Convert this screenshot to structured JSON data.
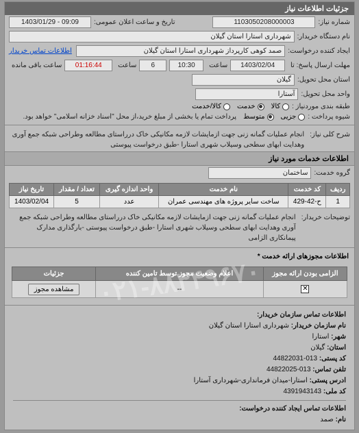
{
  "panel_title": "جزئیات اطلاعات نیاز",
  "labels": {
    "req_no": "شماره نیاز:",
    "announce_dt": "تاریخ و ساعت اعلان عمومی:",
    "buyer_name": "نام دستگاه خریدار:",
    "creator": "ایجاد کننده درخواست:",
    "buyer_contact_link": "اطلاعات تماس خریدار",
    "deadline": "مهلت ارسال پاسخ: تا",
    "time_word": "ساعت",
    "remaining": "ساعت باقی مانده",
    "delivery": "استان محل تحویل:",
    "unit": "واحد محل تحویل:",
    "pkg_supply": "طبقه بندی موردنیاز :",
    "pay_type": "شیوه پرداخت :",
    "pay_note": "پرداخت تمام یا بخشی از مبلغ خرید،از محل \"اسناد خزانه اسلامی\" خواهد بود.",
    "short_desc": "شرح کلی نیاز:",
    "extra_desc": "توضیحات خریدار:",
    "svc_section": "اطلاعات خدمات مورد نیاز",
    "svc_group": "گروه خدمت:",
    "permit_section": "اطلاعات مجوزهای ارائه خدمت *",
    "contact_section": "اطلاعات تماس سازمان خریدار:",
    "org_name_lbl": "نام سازمان خریدار:",
    "city_lbl": "شهر:",
    "province_lbl": "استان:",
    "postal_lbl": "کد پستی:",
    "phone_lbl": "تلفن تماس:",
    "addr_lbl": "ادرس پستی:",
    "natid_lbl": "کد ملی:",
    "creator_name_lbl": "نام:",
    "creator_contact_section": "اطلاعات تماس ایجاد کننده درخواست:"
  },
  "values": {
    "req_no": "1103050208000003",
    "announce_dt": "1403/01/29 - 09:09",
    "buyer_name": "شهرداری استارا استان گیلان",
    "creator": "صمد کوهی کارپرداز شهرداری استارا استان گیلان",
    "deadline_date": "1403/02/04",
    "deadline_time": "10:30",
    "days": "6",
    "timer": "01:16:44",
    "delivery": "گیلان",
    "unit": "آستارا",
    "short_desc": "انجام عملیات گمانه زنی جهت ازمایشات لازمه مکانیکی خاک درراستای مطالعه وطراحی شبکه جمع آوری وهدایت ابهای سطحی وسیلاب شهری استارا -طبق درخواست پیوستی",
    "extra_desc": "انجام عملیات گمانه زنی جهت ازمایشات لازمه مکانیکی خاک درراستای مطالعه وطراحی شبکه جمع آوری وهدایت ابهای سطحی وسیلاب شهری استارا -طبق درخواست پیوستی -بارگذاری مدارک پیمانکاری الزامی",
    "svc_group": "ساختمان"
  },
  "pkg_options": [
    {
      "label": "کالا",
      "checked": false
    },
    {
      "label": "خدمت",
      "checked": true
    },
    {
      "label": "کالا/خدمت",
      "checked": false
    }
  ],
  "pay_options": [
    {
      "label": "جزیی",
      "checked": false
    },
    {
      "label": "متوسط",
      "checked": true
    }
  ],
  "svc_table": {
    "headers": [
      "ردیف",
      "کد خدمت",
      "نام خدمت",
      "واحد اندازه گیری",
      "تعداد / مقدار",
      "تاریخ نیاز"
    ],
    "rows": [
      [
        "1",
        "ح-42-429",
        "ساخت سایر پروژه های مهندسی عمران",
        "عدد",
        "5",
        "1403/02/04"
      ]
    ]
  },
  "permit_table": {
    "headers": [
      "الزامی بودن ارائه مجوز",
      "اعلام وضعیت مجوز توسط تامین کننده",
      "جزئیات"
    ],
    "detail_btn": "مشاهده مجوز",
    "dash": "--"
  },
  "contact": {
    "org_name": "شهرداری استارا استان گیلان",
    "city": "استارا",
    "province": "گیلان",
    "postal": "013-44822031",
    "phone": "013-44822025",
    "address": "استارا-میدان فرمانداری-شهرداری آستارا",
    "natid": "4391943143",
    "creator_name": "صمد"
  },
  "watermark": "۰۲۱-۸۸۳۴۹۶۷۰"
}
